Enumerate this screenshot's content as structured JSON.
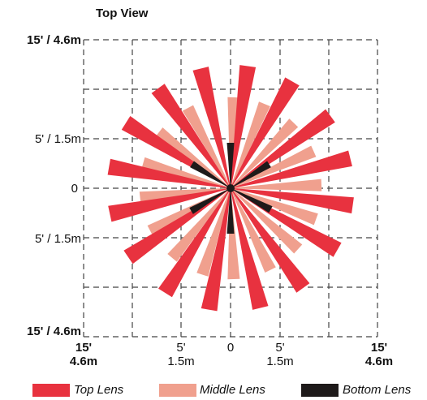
{
  "title": "Top View",
  "y_labels": {
    "top": "15' / 4.6m",
    "upper_mid": "5' / 1.5m",
    "center": "0",
    "lower_mid": "5' / 1.5m",
    "bottom": "15' / 4.6m"
  },
  "x_labels": {
    "left_outer": [
      "15'",
      "4.6m"
    ],
    "left_inner": [
      "5'",
      "1.5m"
    ],
    "center": "0",
    "right_inner": [
      "5'",
      "1.5m"
    ],
    "right_outer": [
      "15'",
      "4.6m"
    ]
  },
  "legend": [
    {
      "label": "Top Lens",
      "color": "#e8323f"
    },
    {
      "label": "Middle Lens",
      "color": "#f0a08e"
    },
    {
      "label": "Bottom Lens",
      "color": "#1e1a1a"
    }
  ],
  "colors": {
    "top": "#e8323f",
    "middle": "#f0a08e",
    "bottom": "#1e1a1a",
    "grid": "#444444"
  },
  "lens_zones": {
    "top_angles_deg": [
      8,
      30,
      54,
      76,
      98,
      120,
      144,
      166,
      190,
      212,
      236,
      258,
      280,
      302,
      324,
      346
    ],
    "middle_angles_deg": [
      2,
      22,
      44,
      66,
      88,
      110,
      132,
      154,
      178,
      198,
      220,
      242,
      264,
      286,
      308,
      332
    ],
    "bottom_angles_deg": [
      0,
      58,
      118,
      180,
      240,
      302
    ]
  }
}
